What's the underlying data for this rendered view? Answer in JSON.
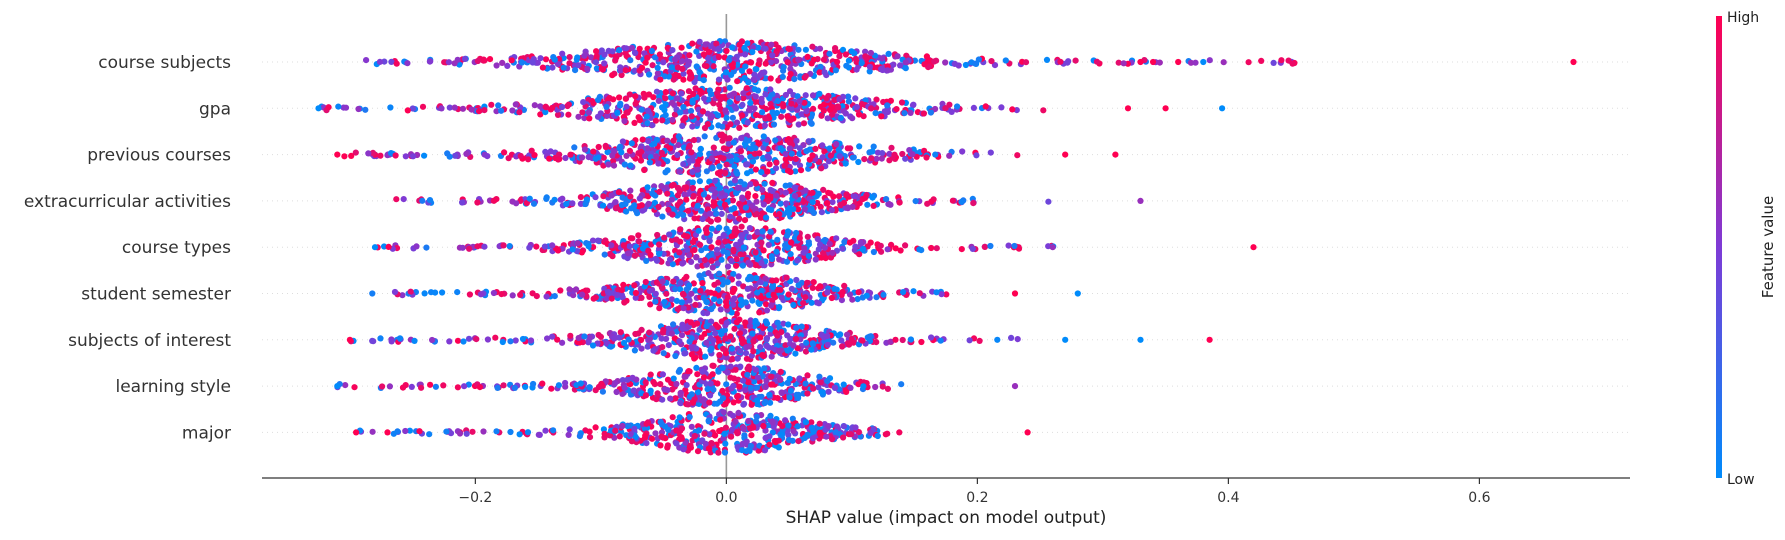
{
  "colors": {
    "low": "#008bfb",
    "high": "#ff0052",
    "axis": "#333333",
    "zero_line": "#999999",
    "row_guide": "#dddddd"
  },
  "chart_data": {
    "type": "scatter",
    "subtype": "shap-beeswarm",
    "title": "",
    "xlabel": "SHAP value (impact on model output)",
    "ylabel": "",
    "xlim": [
      -0.37,
      0.72
    ],
    "xticks": [
      -0.2,
      0.0,
      0.2,
      0.4,
      0.6
    ],
    "xtick_labels": [
      "−0.2",
      "0.0",
      "0.2",
      "0.4",
      "0.6"
    ],
    "grid": false,
    "colorbar": {
      "title": "Feature value",
      "high_label": "High",
      "low_label": "Low"
    },
    "features": [
      {
        "name": "course subjects",
        "min": -0.3,
        "max": 0.675,
        "spread": 0.09,
        "n": 620,
        "outliers": [
          [
            0.675,
            1
          ],
          [
            0.38,
            0
          ],
          [
            0.36,
            1
          ],
          [
            0.34,
            1
          ],
          [
            0.33,
            1
          ]
        ]
      },
      {
        "name": "gpa",
        "min": -0.325,
        "max": 0.395,
        "spread": 0.085,
        "n": 580,
        "outliers": [
          [
            0.395,
            0
          ],
          [
            0.35,
            1
          ],
          [
            -0.325,
            0
          ],
          [
            0.32,
            1
          ]
        ]
      },
      {
        "name": "previous courses",
        "min": -0.31,
        "max": 0.31,
        "spread": 0.08,
        "n": 560,
        "outliers": [
          [
            0.31,
            1
          ],
          [
            -0.31,
            1
          ],
          [
            0.27,
            1
          ]
        ]
      },
      {
        "name": "extracurricular activities",
        "min": -0.27,
        "max": 0.33,
        "spread": 0.065,
        "n": 560,
        "outliers": [
          [
            0.33,
            0.6
          ]
        ]
      },
      {
        "name": "course types",
        "min": -0.28,
        "max": 0.42,
        "spread": 0.065,
        "n": 520,
        "outliers": [
          [
            0.42,
            1
          ],
          [
            -0.28,
            0
          ],
          [
            0.26,
            0.6
          ]
        ]
      },
      {
        "name": "student semester",
        "min": -0.285,
        "max": 0.28,
        "spread": 0.06,
        "n": 480,
        "outliers": [
          [
            0.28,
            0
          ],
          [
            0.23,
            1
          ]
        ]
      },
      {
        "name": "subjects of interest",
        "min": -0.3,
        "max": 0.385,
        "spread": 0.06,
        "n": 520,
        "outliers": [
          [
            0.385,
            1
          ],
          [
            0.33,
            0
          ],
          [
            0.27,
            0
          ],
          [
            -0.3,
            1
          ]
        ]
      },
      {
        "name": "learning style",
        "min": -0.31,
        "max": 0.23,
        "spread": 0.055,
        "n": 460,
        "outliers": [
          [
            -0.31,
            0
          ],
          [
            0.23,
            0.6
          ]
        ]
      },
      {
        "name": "major",
        "min": -0.295,
        "max": 0.24,
        "spread": 0.055,
        "n": 440,
        "outliers": [
          [
            -0.295,
            1
          ],
          [
            -0.27,
            1
          ],
          [
            0.24,
            1
          ]
        ]
      }
    ]
  }
}
